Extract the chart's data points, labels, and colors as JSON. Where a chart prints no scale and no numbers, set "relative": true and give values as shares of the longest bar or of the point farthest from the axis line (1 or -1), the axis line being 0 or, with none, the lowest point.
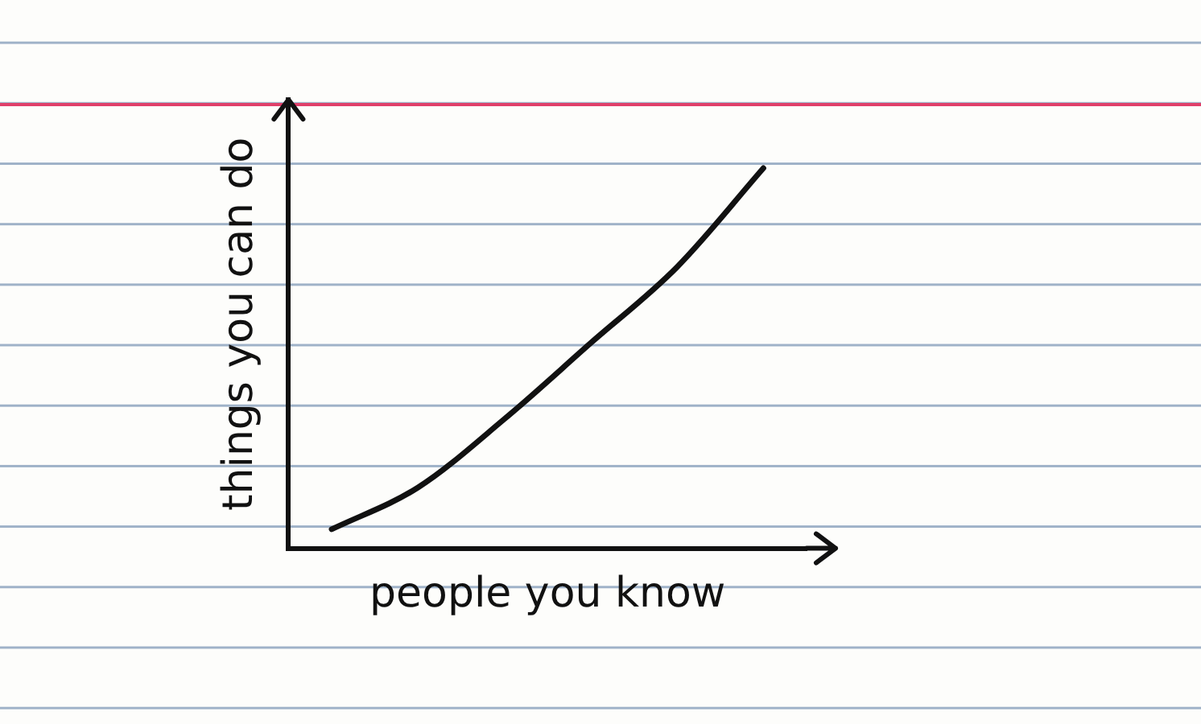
{
  "chart_data": {
    "type": "line",
    "relative": true,
    "xlabel": "people you know",
    "ylabel": "things you can do",
    "categories": [
      null,
      null,
      null,
      null,
      null,
      null
    ],
    "series": [
      {
        "color": "#111111",
        "values": [
          0.05,
          0.16,
          0.34,
          0.54,
          0.74,
          1.0
        ]
      }
    ],
    "grid": false,
    "legend": false,
    "marker": "none",
    "line_style": "solid"
  }
}
